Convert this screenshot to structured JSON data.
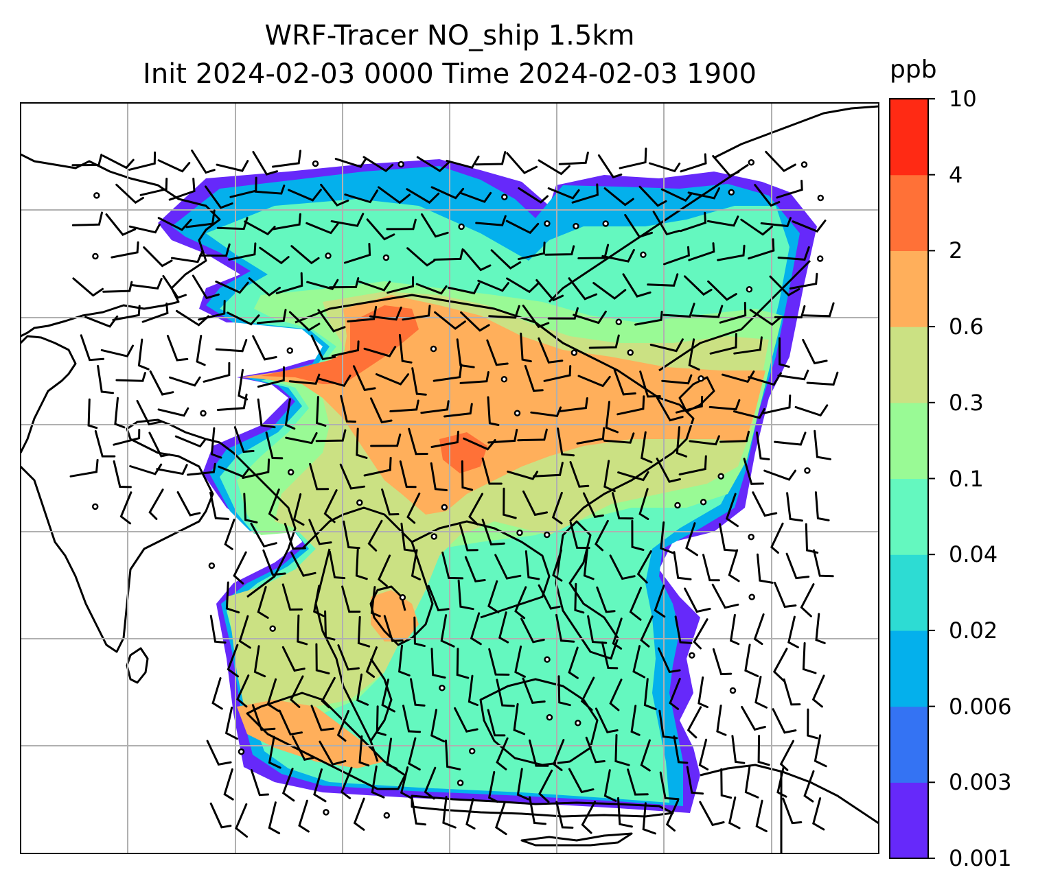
{
  "title": {
    "line1": "WRF-Tracer NO_ship 1.5km",
    "line2": "Init 2024-02-03 0000 Time 2024-02-03 1900"
  },
  "colorbar": {
    "unit": "ppb",
    "levels": [
      "0.001",
      "0.003",
      "0.006",
      "0.02",
      "0.04",
      "0.1",
      "0.3",
      "0.6",
      "2",
      "4",
      "10"
    ],
    "colors": [
      "#6629fa",
      "#3473f3",
      "#04b0ec",
      "#2ddcd3",
      "#64f8bf",
      "#99fa95",
      "#cbe183",
      "#ffaf5b",
      "#ff7137",
      "#ff2a14"
    ]
  },
  "map": {
    "style": "filled contour tracer field with black wind barbs, coastlines and grey lat/lon gridlines",
    "coastline_color": "#000000",
    "gridline_color": "#b0b0b0"
  }
}
